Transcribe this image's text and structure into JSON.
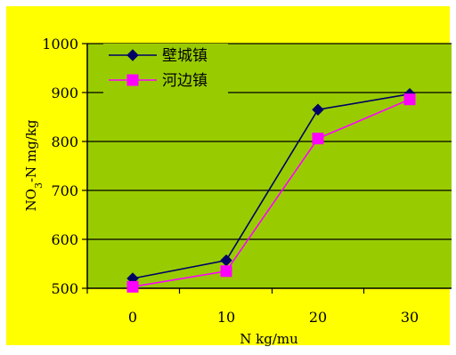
{
  "chart_data": {
    "type": "line",
    "title": "",
    "xlabel": "N kg/mu",
    "ylabel": "NO3-N mg/kg",
    "ylabel_sub": "3",
    "x": [
      0,
      10,
      20,
      30
    ],
    "x_tick_labels": [
      "0",
      "10",
      "20",
      "30"
    ],
    "ylim": [
      500,
      1000
    ],
    "y_ticks": [
      500,
      600,
      700,
      800,
      900,
      1000
    ],
    "grid": true,
    "legend_position": "top-left",
    "series": [
      {
        "name": "壁城镇",
        "values": [
          520,
          557,
          865,
          897
        ],
        "color": "#000066",
        "marker": "diamond"
      },
      {
        "name": "河边镇",
        "values": [
          503,
          535,
          806,
          886
        ],
        "color": "#ff00ff",
        "marker": "square"
      }
    ],
    "colors": {
      "background": "#ffff00",
      "plot_area": "#99cc00",
      "gridline": "#000000"
    }
  }
}
